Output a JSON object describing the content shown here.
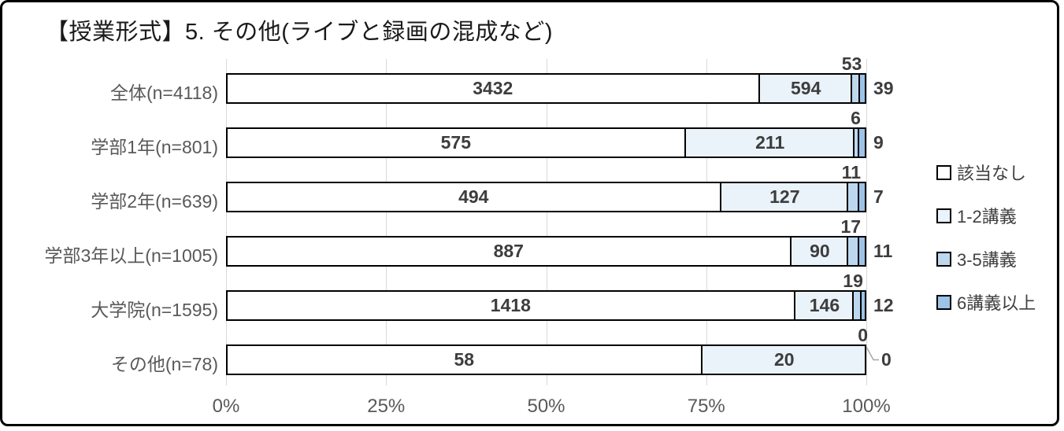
{
  "title": "【授業形式】5. その他(ライブと録画の混成など)",
  "chart_data": {
    "type": "bar",
    "stacked": true,
    "orientation": "horizontal",
    "normalized": "100%-stacked (each row scaled to its n)",
    "title": "【授業形式】5. その他(ライブと録画の混成など)",
    "categories": [
      "全体(n=4118)",
      "学部1年(n=801)",
      "学部2年(n=639)",
      "学部3年以上(n=1005)",
      "大学院(n=1595)",
      "その他(n=78)"
    ],
    "series": [
      {
        "name": "該当なし",
        "color": "#ffffff",
        "values": [
          3432,
          575,
          494,
          887,
          1418,
          58
        ]
      },
      {
        "name": "1-2講義",
        "color": "#eaf2fa",
        "values": [
          594,
          211,
          127,
          90,
          146,
          20
        ]
      },
      {
        "name": "3-5講義",
        "color": "#bdd7ee",
        "values": [
          53,
          6,
          11,
          17,
          19,
          0
        ]
      },
      {
        "name": "6講義以上",
        "color": "#9dc3e6",
        "values": [
          39,
          9,
          7,
          11,
          12,
          0
        ]
      }
    ],
    "x_ticks": [
      "0%",
      "25%",
      "50%",
      "75%",
      "100%"
    ],
    "xlim": [
      0,
      100
    ],
    "grid": true,
    "legend_position": "right",
    "colors": {
      "gridline": "#d9d9d9",
      "bar_border": "#000000",
      "value_label": "#3d3d3d",
      "axis_label": "#595959",
      "leader_line": "#a6a6a6"
    }
  }
}
